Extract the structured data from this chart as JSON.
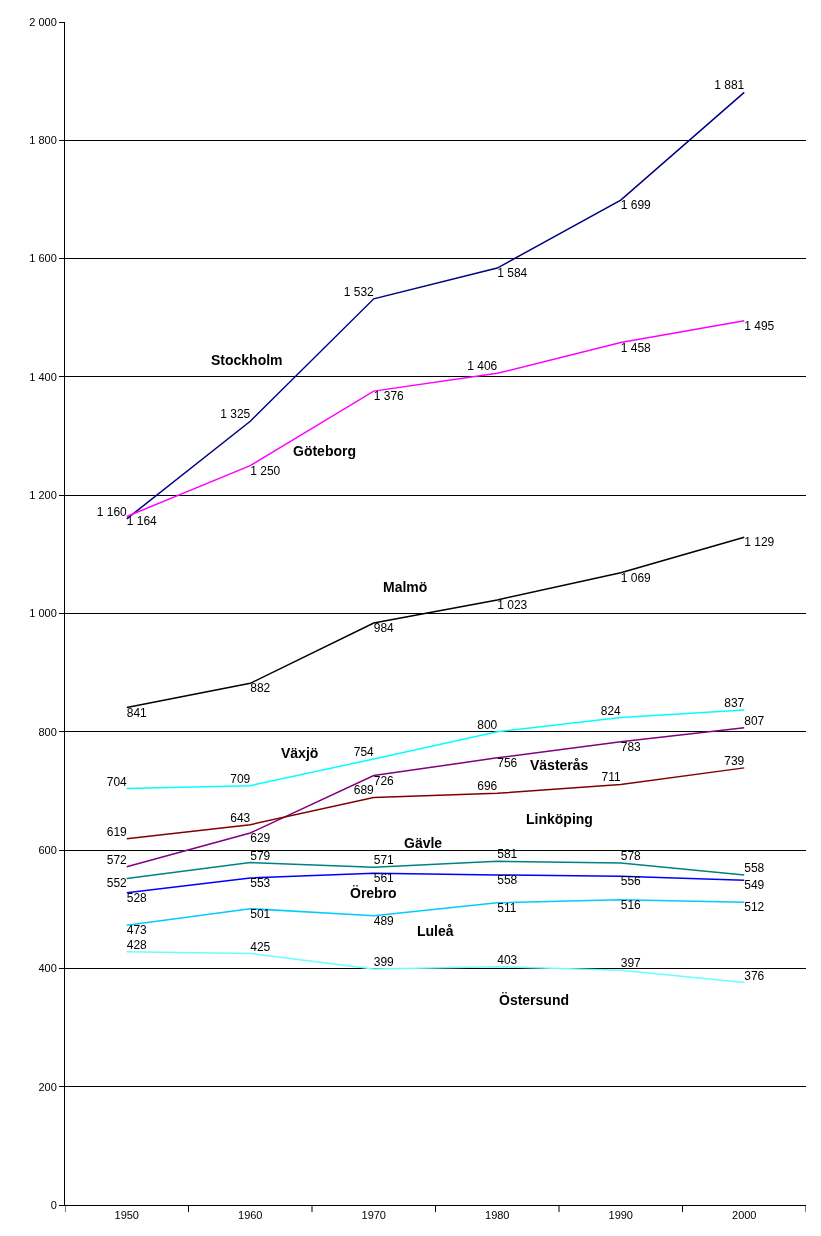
{
  "chart_data": {
    "type": "line",
    "categories": [
      "1950",
      "1960",
      "1970",
      "1980",
      "1990",
      "2000"
    ],
    "ylim": [
      0,
      2000
    ],
    "yticks": [
      0,
      200,
      400,
      600,
      800,
      {
        "value": 1000,
        "label": "1 000"
      },
      {
        "value": 1200,
        "label": "1 200"
      },
      {
        "value": 1400,
        "label": "1 400"
      },
      {
        "value": 1600,
        "label": "1 600"
      },
      {
        "value": 1800,
        "label": "1 800"
      },
      {
        "value": 2000,
        "label": "2 000"
      }
    ],
    "grid": "y",
    "marker": "none",
    "line_style": "solid",
    "series": [
      {
        "name": "Stockholm",
        "color": "#000080",
        "values": [
          1160,
          1325,
          1532,
          1584,
          1699,
          1881
        ],
        "value_labels": [
          "1 160",
          "1 325",
          "1 532",
          "1 584",
          "1 699",
          "1 881"
        ]
      },
      {
        "name": "Göteborg",
        "color": "#ff00ff",
        "values": [
          1164,
          1250,
          1376,
          1406,
          1458,
          1495
        ],
        "value_labels": [
          "1 164",
          "1 250",
          "1 376",
          "1 406",
          "1 458",
          "1 495"
        ]
      },
      {
        "name": "Malmö",
        "color": "#000000",
        "values": [
          841,
          882,
          984,
          1023,
          1069,
          1129
        ],
        "value_labels": [
          "841",
          "882",
          "984",
          "1 023",
          "1 069",
          "1 129"
        ]
      },
      {
        "name": "Växjö",
        "color": "#00ffff",
        "values": [
          704,
          709,
          754,
          800,
          824,
          837
        ],
        "value_labels": [
          "704",
          "709",
          "754",
          "800",
          "824",
          "837"
        ]
      },
      {
        "name": "Västerås",
        "color": "#800080",
        "values": [
          572,
          629,
          726,
          756,
          783,
          807
        ],
        "value_labels": [
          "572",
          "629",
          "726",
          "756",
          "783",
          "807"
        ]
      },
      {
        "name": "Linköping",
        "color": "#800000",
        "values": [
          619,
          643,
          689,
          696,
          711,
          739
        ],
        "value_labels": [
          "619",
          "643",
          "689",
          "696",
          "711",
          "739"
        ]
      },
      {
        "name": "Gävle",
        "color": "#008080",
        "values": [
          552,
          579,
          571,
          581,
          578,
          558
        ],
        "value_labels": [
          "552",
          "579",
          "571",
          "581",
          "578",
          "558"
        ]
      },
      {
        "name": "Örebro",
        "color": "#0000ff",
        "values": [
          528,
          553,
          561,
          558,
          556,
          549
        ],
        "value_labels": [
          "528",
          "553",
          "561",
          "558",
          "556",
          "549"
        ]
      },
      {
        "name": "Luleå",
        "color": "#00ccff",
        "values": [
          473,
          501,
          489,
          511,
          516,
          512
        ],
        "value_labels": [
          "473",
          "501",
          "489",
          "511",
          "516",
          "512"
        ]
      },
      {
        "name": "Östersund",
        "color": "#66ffff",
        "values": [
          428,
          425,
          399,
          403,
          397,
          376
        ],
        "value_labels": [
          "428",
          "425",
          "399",
          "403",
          "397",
          "376"
        ]
      }
    ]
  }
}
